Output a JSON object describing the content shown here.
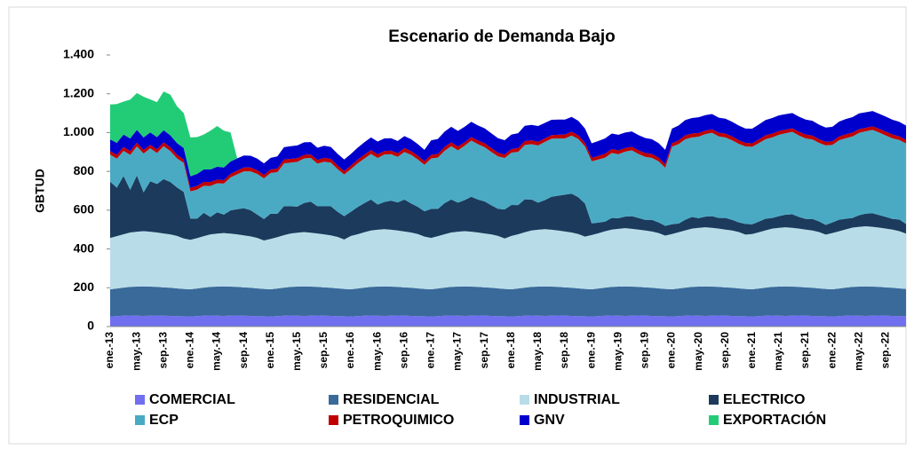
{
  "chart_data": {
    "type": "stacked_area",
    "title": "Escenario de Demanda Bajo",
    "y_label": "GBTUD",
    "categories": [
      "ene.-13",
      null,
      null,
      null,
      "may.-13",
      null,
      null,
      null,
      "sep.-13",
      null,
      null,
      null,
      "ene.-14",
      null,
      null,
      null,
      "may.-14",
      null,
      null,
      null,
      "sep.-14",
      null,
      null,
      null,
      "ene.-15",
      null,
      null,
      null,
      "may.-15",
      null,
      null,
      null,
      "sep.-15",
      null,
      null,
      null,
      "ene.-16",
      null,
      null,
      null,
      "may.-16",
      null,
      null,
      null,
      "sep.-16",
      null,
      null,
      null,
      "ene.-17",
      null,
      null,
      null,
      "may.-17",
      null,
      null,
      null,
      "sep.-17",
      null,
      null,
      null,
      "ene.-18",
      null,
      null,
      null,
      "may.-18",
      null,
      null,
      null,
      "sep.-18",
      null,
      null,
      null,
      "ene.-19",
      null,
      null,
      null,
      "may.-19",
      null,
      null,
      null,
      "sep.-19",
      null,
      null,
      null,
      "ene.-20",
      null,
      null,
      null,
      "may.-20",
      null,
      null,
      null,
      "sep.-20",
      null,
      null,
      null,
      "ene.-21",
      null,
      null,
      null,
      "may.-21",
      null,
      null,
      null,
      "sep.-21",
      null,
      null,
      null,
      "ene.-22",
      null,
      null,
      null,
      "may.-22",
      null,
      null,
      null,
      "sep.-22",
      null,
      null,
      null
    ],
    "ylim": [
      0,
      1400
    ],
    "yticks": [
      0,
      200,
      400,
      600,
      800,
      {
        "value": 1000,
        "label": "1.000"
      },
      {
        "value": 1200,
        "label": "1.200"
      },
      {
        "value": 1400,
        "label": "1.400"
      }
    ],
    "series": [
      {
        "name": "COMERCIAL",
        "color": "#6f6ff0",
        "values": [
          52,
          54,
          56,
          57,
          56,
          55,
          56,
          57,
          56,
          55,
          54,
          53,
          52,
          54,
          56,
          57,
          56,
          55,
          56,
          57,
          56,
          55,
          54,
          53,
          52,
          54,
          56,
          57,
          56,
          55,
          56,
          57,
          56,
          55,
          54,
          53,
          52,
          54,
          56,
          57,
          56,
          55,
          56,
          57,
          56,
          55,
          54,
          53,
          52,
          54,
          56,
          57,
          56,
          55,
          56,
          57,
          56,
          55,
          54,
          53,
          52,
          54,
          56,
          57,
          56,
          55,
          56,
          57,
          56,
          55,
          54,
          53,
          52,
          54,
          56,
          57,
          56,
          55,
          56,
          57,
          56,
          55,
          54,
          53,
          52,
          54,
          56,
          57,
          56,
          55,
          56,
          57,
          56,
          55,
          54,
          53,
          52,
          54,
          56,
          57,
          56,
          55,
          56,
          57,
          56,
          55,
          54,
          53,
          52,
          54,
          56,
          57,
          56,
          55,
          56,
          57,
          56,
          55,
          54,
          53
        ]
      },
      {
        "name": "RESIDENCIAL",
        "color": "#3a6a9a",
        "values": [
          140,
          142,
          145,
          148,
          150,
          152,
          150,
          148,
          146,
          145,
          143,
          141,
          140,
          142,
          145,
          148,
          150,
          152,
          150,
          148,
          146,
          145,
          143,
          141,
          140,
          142,
          145,
          148,
          150,
          152,
          150,
          148,
          146,
          145,
          143,
          141,
          140,
          142,
          145,
          148,
          150,
          152,
          150,
          148,
          146,
          145,
          143,
          141,
          140,
          142,
          145,
          148,
          150,
          152,
          150,
          148,
          146,
          145,
          143,
          141,
          140,
          142,
          145,
          148,
          150,
          152,
          150,
          148,
          146,
          145,
          143,
          141,
          140,
          142,
          145,
          148,
          150,
          152,
          150,
          148,
          146,
          145,
          143,
          141,
          140,
          142,
          145,
          148,
          150,
          152,
          150,
          148,
          146,
          145,
          143,
          141,
          140,
          142,
          145,
          148,
          150,
          152,
          150,
          148,
          146,
          145,
          143,
          141,
          140,
          142,
          145,
          148,
          150,
          152,
          150,
          148,
          146,
          145,
          143,
          141
        ]
      },
      {
        "name": "INDUSTRIAL",
        "color": "#b8dde8",
        "values": [
          265,
          270,
          275,
          280,
          283,
          285,
          283,
          280,
          278,
          275,
          270,
          260,
          255,
          260,
          265,
          270,
          273,
          275,
          273,
          270,
          268,
          265,
          260,
          250,
          260,
          265,
          270,
          275,
          278,
          280,
          278,
          275,
          273,
          270,
          265,
          255,
          275,
          280,
          285,
          290,
          293,
          295,
          293,
          290,
          288,
          285,
          280,
          270,
          265,
          270,
          275,
          280,
          283,
          285,
          283,
          280,
          278,
          275,
          270,
          260,
          275,
          280,
          285,
          290,
          293,
          295,
          293,
          290,
          288,
          285,
          280,
          270,
          280,
          285,
          290,
          295,
          298,
          300,
          298,
          295,
          293,
          290,
          285,
          275,
          285,
          290,
          295,
          300,
          303,
          305,
          303,
          300,
          298,
          295,
          290,
          280,
          285,
          290,
          295,
          300,
          303,
          305,
          303,
          300,
          298,
          295,
          290,
          280,
          290,
          295,
          300,
          305,
          308,
          310,
          308,
          305,
          303,
          300,
          295,
          285
        ]
      },
      {
        "name": "ELECTRICO",
        "color": "#1b3a5c",
        "values": [
          290,
          250,
          300,
          220,
          290,
          200,
          260,
          250,
          280,
          270,
          250,
          240,
          110,
          100,
          120,
          90,
          110,
          95,
          120,
          130,
          140,
          135,
          120,
          110,
          130,
          120,
          150,
          140,
          135,
          150,
          160,
          140,
          145,
          150,
          130,
          120,
          125,
          140,
          150,
          160,
          130,
          140,
          150,
          145,
          165,
          150,
          140,
          130,
          150,
          140,
          160,
          170,
          150,
          160,
          180,
          170,
          165,
          150,
          140,
          150,
          160,
          150,
          170,
          160,
          140,
          150,
          170,
          180,
          190,
          200,
          190,
          170,
          60,
          55,
          50,
          60,
          55,
          60,
          65,
          60,
          55,
          60,
          55,
          50,
          50,
          45,
          55,
          60,
          50,
          55,
          60,
          55,
          60,
          55,
          50,
          55,
          50,
          55,
          60,
          55,
          60,
          65,
          70,
          60,
          55,
          60,
          55,
          50,
          55,
          60,
          55,
          50,
          60,
          65,
          70,
          65,
          60,
          55,
          60,
          50
        ]
      },
      {
        "name": "ECP",
        "color": "#4aaac4",
        "values": [
          140,
          150,
          130,
          180,
          150,
          200,
          170,
          160,
          170,
          160,
          150,
          150,
          140,
          150,
          140,
          160,
          150,
          160,
          170,
          180,
          190,
          200,
          210,
          210,
          210,
          215,
          220,
          225,
          230,
          230,
          225,
          220,
          230,
          225,
          220,
          215,
          220,
          225,
          230,
          235,
          240,
          245,
          240,
          235,
          245,
          250,
          245,
          240,
          260,
          265,
          270,
          275,
          270,
          280,
          290,
          285,
          280,
          275,
          270,
          265,
          270,
          275,
          280,
          285,
          295,
          300,
          300,
          295,
          290,
          300,
          300,
          295,
          320,
          325,
          330,
          335,
          330,
          335,
          340,
          330,
          325,
          320,
          315,
          300,
          400,
          410,
          415,
          410,
          420,
          425,
          430,
          420,
          415,
          410,
          405,
          400,
          400,
          405,
          410,
          415,
          420,
          420,
          425,
          420,
          415,
          410,
          405,
          410,
          400,
          410,
          415,
          420,
          425,
          425,
          430,
          425,
          420,
          415,
          410,
          415
        ]
      },
      {
        "name": "PETROQUIMICO",
        "color": "#c00000",
        "values": [
          18,
          19,
          20,
          20,
          19,
          18,
          18,
          19,
          20,
          20,
          19,
          18,
          18,
          19,
          20,
          20,
          19,
          18,
          18,
          19,
          20,
          20,
          19,
          18,
          18,
          19,
          20,
          20,
          19,
          18,
          18,
          19,
          20,
          20,
          19,
          18,
          18,
          19,
          20,
          20,
          19,
          18,
          18,
          19,
          20,
          20,
          19,
          18,
          18,
          19,
          20,
          20,
          19,
          18,
          18,
          19,
          20,
          20,
          19,
          18,
          18,
          19,
          20,
          20,
          19,
          18,
          18,
          19,
          20,
          20,
          19,
          18,
          18,
          19,
          20,
          20,
          19,
          18,
          18,
          19,
          20,
          20,
          19,
          18,
          18,
          19,
          20,
          20,
          19,
          18,
          18,
          19,
          20,
          20,
          19,
          18,
          18,
          19,
          20,
          20,
          19,
          18,
          18,
          19,
          20,
          20,
          19,
          18,
          18,
          19,
          20,
          20,
          19,
          18,
          18,
          19,
          20,
          20,
          19,
          18
        ]
      },
      {
        "name": "GNV",
        "color": "#0000cc",
        "values": [
          60,
          62,
          64,
          65,
          66,
          65,
          64,
          63,
          62,
          61,
          60,
          59,
          60,
          62,
          64,
          65,
          66,
          65,
          64,
          63,
          62,
          61,
          60,
          59,
          60,
          62,
          64,
          65,
          66,
          65,
          64,
          63,
          62,
          61,
          60,
          59,
          60,
          62,
          64,
          65,
          66,
          65,
          64,
          63,
          62,
          61,
          60,
          59,
          75,
          77,
          79,
          80,
          81,
          80,
          79,
          78,
          77,
          76,
          75,
          74,
          75,
          77,
          79,
          80,
          81,
          80,
          79,
          78,
          77,
          76,
          75,
          74,
          75,
          77,
          79,
          80,
          81,
          80,
          79,
          78,
          77,
          76,
          75,
          74,
          75,
          77,
          79,
          80,
          81,
          80,
          79,
          78,
          77,
          76,
          75,
          74,
          75,
          77,
          79,
          80,
          81,
          80,
          79,
          78,
          77,
          76,
          75,
          74,
          75,
          77,
          79,
          80,
          81,
          80,
          79,
          78,
          77,
          76,
          75,
          74
        ]
      },
      {
        "name": "EXPORTACIÓN",
        "color": "#22cc77",
        "values": [
          180,
          200,
          170,
          200,
          190,
          210,
          170,
          180,
          200,
          210,
          190,
          180,
          200,
          190,
          180,
          200,
          210,
          190,
          150,
          0,
          0,
          0,
          0,
          0,
          0,
          0,
          0,
          0,
          0,
          0,
          0,
          0,
          0,
          0,
          0,
          0,
          0,
          0,
          0,
          0,
          0,
          0,
          0,
          0,
          0,
          0,
          0,
          0,
          0,
          0,
          0,
          0,
          0,
          0,
          0,
          0,
          0,
          0,
          0,
          0,
          0,
          0,
          0,
          0,
          0,
          0,
          0,
          0,
          0,
          0,
          0,
          0,
          0,
          0,
          0,
          0,
          0,
          0,
          0,
          0,
          0,
          0,
          0,
          0,
          0,
          0,
          0,
          0,
          0,
          0,
          0,
          0,
          0,
          0,
          0,
          0,
          0,
          0,
          0,
          0,
          0,
          0,
          0,
          0,
          0,
          0,
          0,
          0,
          0,
          0,
          0,
          0,
          0,
          0,
          0,
          0,
          0,
          0,
          0,
          0
        ]
      }
    ]
  }
}
